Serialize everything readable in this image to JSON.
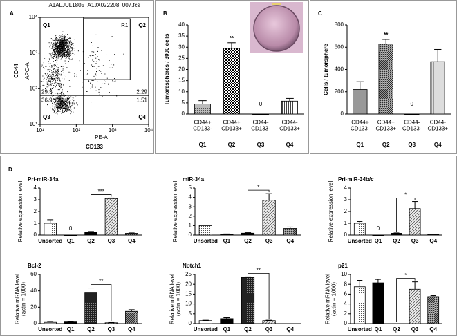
{
  "chart_data": [
    {
      "type": "flow-scatter",
      "panel_label": "A",
      "title": "A1ALJUL1805_A1JX022208_007.fcs",
      "xlabel": "CD133",
      "x_channel": "PE-A",
      "ylabel": "CD44",
      "y_channel": "APC-A",
      "log": true,
      "xlim": [
        10,
        10000
      ],
      "ylim": [
        10,
        10000
      ],
      "xticks": [
        {
          "value": 10,
          "label": "10¹"
        },
        {
          "value": 100,
          "label": "10²"
        },
        {
          "value": 1000,
          "label": "10³"
        },
        {
          "value": 10000,
          "label": "10⁴"
        }
      ],
      "yticks": [
        {
          "value": 10,
          "label": "10¹"
        },
        {
          "value": 100,
          "label": "10²"
        },
        {
          "value": 1000,
          "label": "10³"
        },
        {
          "value": 10000,
          "label": "10⁴"
        }
      ],
      "quadrant_labels": [
        "Q1",
        "Q2",
        "Q3",
        "Q4"
      ],
      "gate_label": "R1",
      "quadrant_percent": [
        29.3,
        2.29,
        36.9,
        1.51
      ]
    },
    {
      "type": "bar",
      "panel_label": "B",
      "ylabel": "Tumorespheres / 3000 cells",
      "categories": [
        "CD44+\nCD133-",
        "CD44+\nCD133+",
        "CD44-\nCD133-",
        "CD44-\nCD133+"
      ],
      "group_labels": [
        "Q1",
        "Q2",
        "Q3",
        "Q4"
      ],
      "values": [
        4.5,
        29.5,
        0,
        5.8
      ],
      "errors": [
        1.5,
        2.5,
        0,
        1.2
      ],
      "value_labels": [
        null,
        null,
        "0",
        null
      ],
      "fills": [
        "gray-dots",
        "checker",
        "white",
        "vstripe"
      ],
      "ylim": [
        0,
        40
      ],
      "yticks": [
        0,
        5,
        10,
        15,
        20,
        25,
        30,
        35,
        40
      ],
      "significance": [
        {
          "label": "**",
          "from": 1,
          "to": 1
        }
      ]
    },
    {
      "type": "bar",
      "panel_label": "C",
      "ylabel": "Cells / tumorsphere",
      "categories": [
        "CD44+\nCD133-",
        "CD44+\nCD133+",
        "CD44-\nCD133-",
        "CD44-\nCD133+"
      ],
      "group_labels": [
        "Q1",
        "Q2",
        "Q3",
        "Q4"
      ],
      "values": [
        220,
        630,
        0,
        470
      ],
      "errors": [
        70,
        40,
        0,
        110
      ],
      "value_labels": [
        null,
        null,
        "0",
        null
      ],
      "fills": [
        "gray",
        "dark-hatch",
        "white",
        "light-vstripe"
      ],
      "ylim": [
        0,
        800
      ],
      "yticks": [
        0,
        200,
        400,
        600,
        800
      ],
      "significance": [
        {
          "label": "**",
          "from": 1,
          "to": 1
        }
      ]
    },
    {
      "type": "bar",
      "panel_label": "D",
      "title": "Pri-miR-34a",
      "ylabel": "Relative expression level",
      "categories": [
        "Unsorted",
        "Q1",
        "Q2",
        "Q3",
        "Q4"
      ],
      "values": [
        1.0,
        0,
        0.25,
        3.1,
        0.15
      ],
      "errors": [
        0.3,
        0,
        0.05,
        0.05,
        0.03
      ],
      "value_labels": [
        null,
        "0",
        null,
        null,
        null
      ],
      "fills": [
        "dots",
        "black",
        "black",
        "hatch",
        "dark-hatch"
      ],
      "ylim": [
        0,
        4
      ],
      "yticks": [
        0,
        1,
        2,
        3,
        4
      ],
      "significance": [
        {
          "label": "***",
          "from": 2,
          "to": 3
        }
      ]
    },
    {
      "type": "bar",
      "title": "miR-34a",
      "ylabel": "Relative expression level",
      "categories": [
        "Unsorted",
        "Q1",
        "Q2",
        "Q3",
        "Q4"
      ],
      "values": [
        1.0,
        0.1,
        0.2,
        3.7,
        0.7
      ],
      "errors": [
        0.05,
        0.02,
        0.05,
        0.7,
        0.15
      ],
      "fills": [
        "dots",
        "black",
        "black",
        "hatch",
        "dark-hatch"
      ],
      "ylim": [
        0,
        5
      ],
      "yticks": [
        0,
        1,
        2,
        3,
        4,
        5
      ],
      "significance": [
        {
          "label": "*",
          "from": 2,
          "to": 3
        }
      ]
    },
    {
      "type": "bar",
      "title": "Pri-miR-34b/c",
      "ylabel": "Relative expression level",
      "categories": [
        "Unsorted",
        "Q1",
        "Q2",
        "Q3",
        "Q4"
      ],
      "values": [
        1.0,
        0,
        0.15,
        2.25,
        0.05
      ],
      "errors": [
        0.15,
        0,
        0.03,
        0.6,
        0.02
      ],
      "value_labels": [
        null,
        "0",
        null,
        null,
        null
      ],
      "fills": [
        "dots",
        "black",
        "black",
        "hatch",
        "dark-hatch"
      ],
      "ylim": [
        0,
        4
      ],
      "yticks": [
        0,
        1,
        2,
        3,
        4
      ],
      "significance": [
        {
          "label": "*",
          "from": 2,
          "to": 3
        }
      ]
    },
    {
      "type": "bar",
      "title": "Bcl-2",
      "ylabel": "Relative mRNA level\n(actin = 1000)",
      "categories": [
        "Unsorted",
        "Q1",
        "Q2",
        "Q3",
        "Q4"
      ],
      "values": [
        1.5,
        2,
        37.5,
        1,
        15
      ],
      "errors": [
        0.3,
        0.3,
        6,
        0.3,
        2
      ],
      "fills": [
        "white",
        "black",
        "dark-checker",
        "hatch",
        "dark-hatch"
      ],
      "ylim": [
        0,
        60
      ],
      "yticks": [
        0,
        20,
        40,
        60
      ],
      "significance": [
        {
          "label": "**",
          "from": 2,
          "to": 3
        }
      ]
    },
    {
      "type": "bar",
      "title": "Notch1",
      "ylabel": "Relative mRNA level\n(actin = 1000)",
      "categories": [
        "Unsorted",
        "Q1",
        "Q2",
        "Q3",
        "Q4"
      ],
      "values": [
        1.5,
        2.5,
        23.5,
        1.5,
        null
      ],
      "errors": [
        0.2,
        0.5,
        0.3,
        0.2,
        null
      ],
      "fills": [
        "white",
        "black",
        "dark-checker",
        "hatch",
        "dark-hatch"
      ],
      "ylim": [
        0,
        25
      ],
      "yticks": [
        0,
        5,
        10,
        15,
        20,
        25
      ],
      "significance": [
        {
          "label": "**",
          "from": 2,
          "to": 3
        }
      ]
    },
    {
      "type": "bar",
      "title": "p21",
      "ylabel": "Relative mRNA level\n(actin = 1000)",
      "categories": [
        "Unsorted",
        "Q1",
        "Q2",
        "Q3",
        "Q4"
      ],
      "values": [
        7.5,
        8.3,
        null,
        7,
        5.5
      ],
      "errors": [
        1.3,
        0.7,
        null,
        1.5,
        0.2
      ],
      "fills": [
        "dots",
        "black",
        "white",
        "hatch",
        "dark-hatch"
      ],
      "ylim": [
        0,
        10
      ],
      "yticks": [
        0,
        2,
        4,
        6,
        8,
        10
      ],
      "significance": [
        {
          "label": "*",
          "from": 2,
          "to": 3
        }
      ]
    }
  ]
}
